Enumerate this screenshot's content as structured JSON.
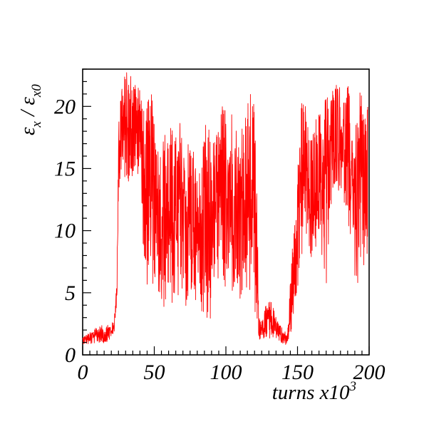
{
  "chart_data": {
    "type": "line",
    "title": "",
    "xlabel": "turns x10",
    "xlabel_exponent": "3",
    "ylabel_symbol": "ε",
    "ylabel_sub1": "x",
    "ylabel_slash": " / ",
    "ylabel_sub2": "x0",
    "xlim": [
      0,
      200
    ],
    "ylim": [
      0,
      23
    ],
    "x_ticks": [
      0,
      50,
      100,
      150,
      200
    ],
    "x_tick_labels": [
      "0",
      "50",
      "100",
      "150",
      "200"
    ],
    "y_ticks": [
      0,
      5,
      10,
      15,
      20
    ],
    "y_tick_labels": [
      "0",
      "5",
      "10",
      "15",
      "20"
    ],
    "grid": false,
    "series": [
      {
        "color": "#ff0000",
        "x": [
          0,
          5,
          10,
          15,
          20,
          22,
          24,
          25,
          27,
          30,
          33,
          36,
          39,
          41,
          43,
          45,
          48,
          50,
          53,
          56,
          59,
          62,
          65,
          68,
          71,
          74,
          77,
          80,
          83,
          86,
          89,
          92,
          95,
          98,
          101,
          104,
          107,
          110,
          113,
          116,
          119,
          121,
          123,
          125,
          128,
          131,
          134,
          137,
          140,
          143,
          146,
          149,
          152,
          155,
          158,
          161,
          164,
          167,
          170,
          173,
          176,
          179,
          182,
          185,
          188,
          191,
          194,
          197,
          199
        ],
        "y_min": [
          0.9,
          0.8,
          1.0,
          0.9,
          1.3,
          1.8,
          4.0,
          13.5,
          13.0,
          14.2,
          13.8,
          14.5,
          14.0,
          13.8,
          5.0,
          5.5,
          6.2,
          5.0,
          4.5,
          2.8,
          5.0,
          4.0,
          3.2,
          5.0,
          4.5,
          2.5,
          4.8,
          4.2,
          3.5,
          2.8,
          2.0,
          5.5,
          6.0,
          4.8,
          5.5,
          4.5,
          5.0,
          3.5,
          5.0,
          3.8,
          5.5,
          2.0,
          1.2,
          1.0,
          1.4,
          1.2,
          1.5,
          1.1,
          0.8,
          0.8,
          1.5,
          4.5,
          6.5,
          9.8,
          7.5,
          7.0,
          9.5,
          7.5,
          5.2,
          11.5,
          12.5,
          13.0,
          12.5,
          11.0,
          8.5,
          5.0,
          4.5,
          6.8,
          7.5
        ],
        "y_max": [
          1.5,
          1.8,
          2.3,
          2.4,
          2.5,
          2.8,
          6.5,
          20.5,
          22.5,
          22.8,
          23.0,
          22.5,
          22.8,
          21.5,
          19.5,
          20.5,
          21.0,
          21.5,
          17.0,
          18.0,
          18.8,
          18.5,
          17.8,
          19.0,
          16.0,
          18.0,
          17.5,
          14.5,
          15.5,
          19.0,
          18.0,
          17.5,
          19.0,
          20.5,
          21.0,
          20.5,
          19.0,
          17.5,
          19.5,
          21.0,
          21.5,
          18.0,
          3.5,
          3.0,
          4.0,
          4.5,
          3.5,
          2.8,
          2.0,
          1.8,
          8.0,
          15.0,
          20.0,
          21.5,
          17.5,
          18.0,
          20.0,
          19.5,
          21.5,
          21.0,
          22.5,
          22.0,
          21.0,
          22.0,
          19.5,
          18.5,
          21.5,
          20.0,
          22.0
        ]
      }
    ]
  }
}
